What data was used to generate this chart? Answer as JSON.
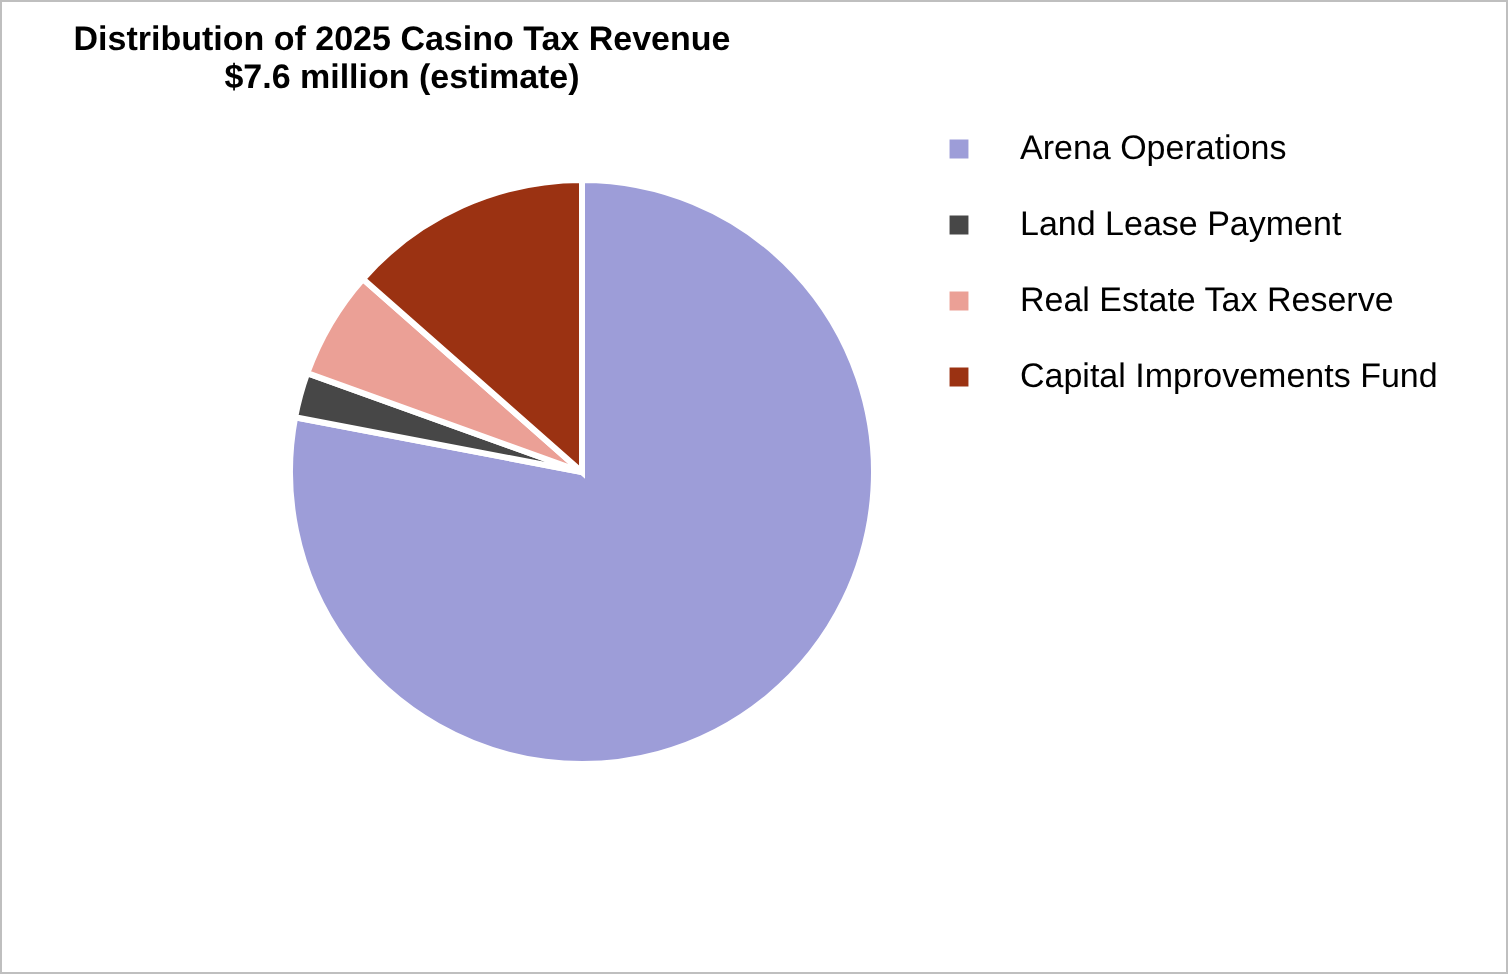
{
  "chart_data": {
    "type": "pie",
    "title": [
      "Distribution of 2025 Casino Tax Revenue",
      "$7.6 million (estimate)"
    ],
    "categories": [
      "Arena Operations",
      "Land Lease Payment",
      "Real Estate Tax Reserve",
      "Capital Improvements Fund"
    ],
    "values": [
      78,
      2.5,
      6,
      13.5
    ],
    "colors": [
      "#9d9dd8",
      "#474747",
      "#eba096",
      "#9b3212"
    ],
    "legend": "right"
  }
}
